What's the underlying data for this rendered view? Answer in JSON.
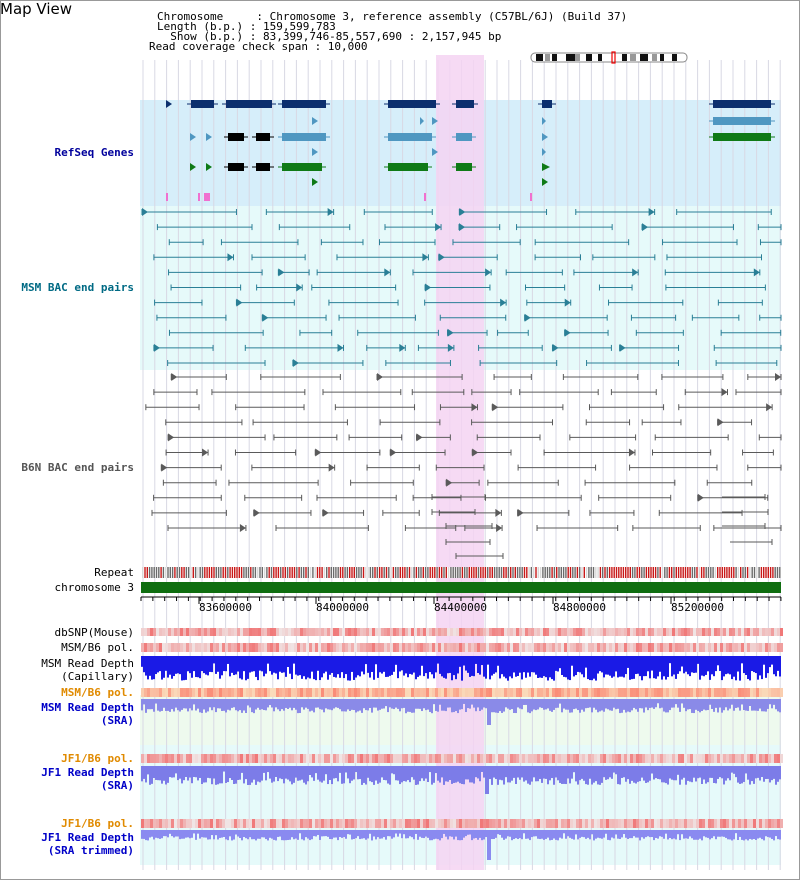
{
  "header": {
    "title": "Map View",
    "chromosome_line": "Chromosome     : Chromosome 3, reference assembly (C57BL/6J) (Build 37)",
    "length_line": "Length (b.p.) : 159,599,783",
    "show_line": "  Show (b.p.) : 83,399,746-85,557,690 : 2,157,945 bp",
    "coverage_line": "Read coverage check span : 10,000"
  },
  "tracks": {
    "refseq": "RefSeq Genes",
    "msm_bac": "MSM BAC end pairs",
    "b6n_bac": "B6N BAC end pairs",
    "repeat": "Repeat",
    "chromosome": "chromosome 3",
    "dbsnp": "dbSNP(Mouse)",
    "msm_pol1": "MSM/B6 pol.",
    "msm_depth_cap_1": "MSM Read Depth",
    "msm_depth_cap_2": "(Capillary)",
    "msm_pol2": "MSM/B6 pol.",
    "msm_depth_sra_1": "MSM Read Depth",
    "msm_depth_sra_2": "(SRA)",
    "jf1_pol1": "JF1/B6 pol.",
    "jf1_depth_1": "JF1 Read Depth",
    "jf1_depth_2": "(SRA)",
    "jf1_pol2": "JF1/B6 pol.",
    "jf1_trim_1": "JF1 Read Depth",
    "jf1_trim_2": "(SRA trimmed)"
  },
  "axis": {
    "ticks": [
      "83600000",
      "84000000",
      "84400000",
      "84800000",
      "85200000"
    ]
  },
  "colors": {
    "highlight": "#f5d4f2",
    "refseq_bg": "#d6eefa",
    "msm_bg": "#e6fafa",
    "navy": "#0c2f6e",
    "steel": "#4f97c1",
    "green": "#0f7a16",
    "teal": "#2a7f96",
    "gray": "#5a5a5a"
  }
}
